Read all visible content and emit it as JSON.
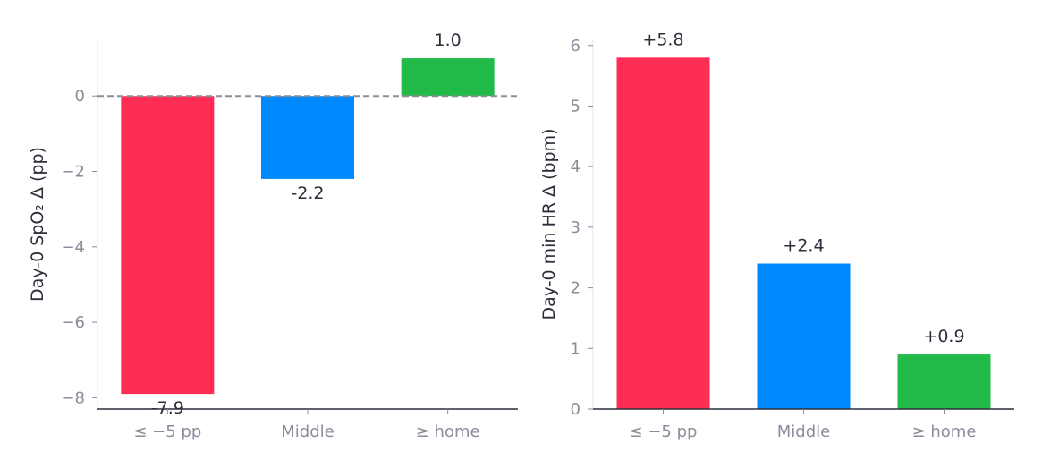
{
  "colors": {
    "bar_low": "#ff2d55",
    "bar_middle": "#0088ff",
    "bar_home": "#22bb4a",
    "axis": "#2b2f3a",
    "tick_text": "#8a8d9a",
    "zero_line": "#8a8d9a"
  },
  "chart_data": [
    {
      "type": "bar",
      "categories": [
        "≤ −5 pp",
        "Middle",
        "≥ home"
      ],
      "values": [
        -7.9,
        -2.2,
        1.0
      ],
      "data_labels": [
        "-7.9",
        "-2.2",
        "1.0"
      ],
      "xlabel": "",
      "ylabel": "Day-0 SpO₂ Δ (pp)",
      "ylim": [
        -8.3,
        1.5
      ],
      "yticks": [
        0,
        -2,
        -4,
        -6,
        -8
      ],
      "ytick_labels": [
        "0",
        "−2",
        "−4",
        "−6",
        "−8"
      ],
      "zero_line": "dashed",
      "grid": false
    },
    {
      "type": "bar",
      "categories": [
        "≤ −5 pp",
        "Middle",
        "≥ home"
      ],
      "values": [
        5.8,
        2.4,
        0.9
      ],
      "data_labels": [
        "+5.8",
        "+2.4",
        "+0.9"
      ],
      "xlabel": "",
      "ylabel": "Day-0 min HR Δ (bpm)",
      "ylim": [
        0,
        6.1
      ],
      "yticks": [
        0,
        1,
        2,
        3,
        4,
        5,
        6
      ],
      "ytick_labels": [
        "0",
        "1",
        "2",
        "3",
        "4",
        "5",
        "6"
      ],
      "grid": false
    }
  ]
}
